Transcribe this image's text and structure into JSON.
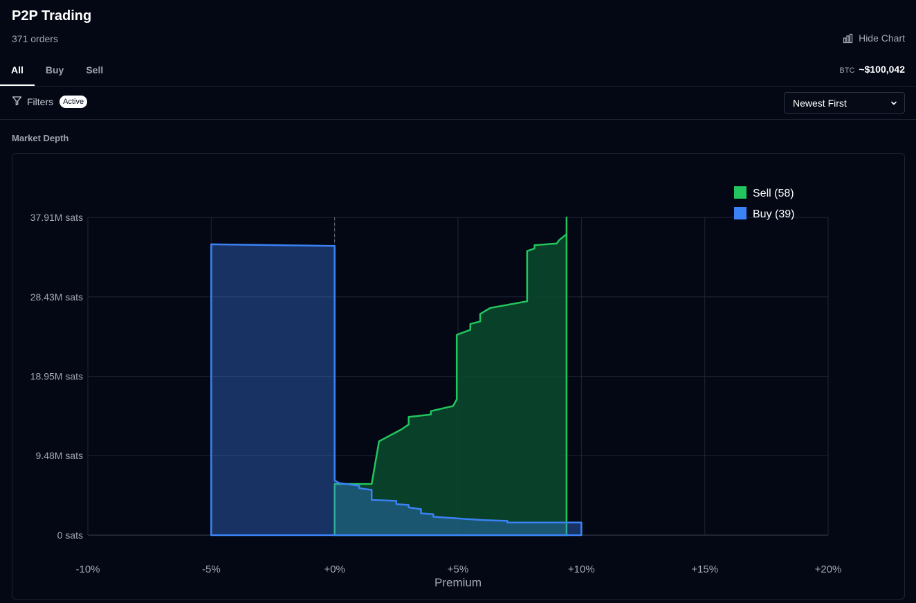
{
  "header": {
    "title": "P2P Trading",
    "order_count": "371 orders",
    "hide_chart_label": "Hide Chart",
    "btc_label": "BTC",
    "btc_price": "~$100,042"
  },
  "tabs": [
    {
      "label": "All",
      "active": true
    },
    {
      "label": "Buy",
      "active": false
    },
    {
      "label": "Sell",
      "active": false
    }
  ],
  "toolbar": {
    "filters_label": "Filters",
    "filters_badge": "Active",
    "sort_selected": "Newest First"
  },
  "section": {
    "market_depth_label": "Market Depth"
  },
  "icons": {
    "filter": "filter-icon",
    "chart": "bar-chart-icon",
    "dropdown": "chevron-down-icon"
  },
  "colors": {
    "sell": "#22c55e",
    "sell_fill": "#0b4a2d",
    "buy": "#3b82f6",
    "buy_fill": "#152e5c"
  },
  "chart_data": {
    "type": "area",
    "xlabel": "Premium",
    "ylabel": "",
    "x_unit": "%",
    "xlim": [
      -10,
      20
    ],
    "ylim": [
      0,
      37.91
    ],
    "x_ticks": [
      -10,
      -5,
      0,
      5,
      10,
      15,
      20
    ],
    "x_tick_labels": [
      "-10%",
      "-5%",
      "+0%",
      "+5%",
      "+10%",
      "+15%",
      "+20%"
    ],
    "y_ticks": [
      0,
      9.48,
      18.95,
      28.43,
      37.91
    ],
    "y_tick_labels": [
      "0 sats",
      "9.48M sats",
      "18.95M sats",
      "28.43M sats",
      "37.91M sats"
    ],
    "y_unit": "M sats",
    "grid": true,
    "legend_position": "top-right",
    "reference_line_x": 0,
    "series": [
      {
        "name": "Sell (58)",
        "color": "#22c55e",
        "points": [
          [
            0.0,
            0
          ],
          [
            0.0,
            6.1
          ],
          [
            1.5,
            6.1
          ],
          [
            1.8,
            11.2
          ],
          [
            2.7,
            12.6
          ],
          [
            3.0,
            13.2
          ],
          [
            3.0,
            14.1
          ],
          [
            3.9,
            14.4
          ],
          [
            3.9,
            14.8
          ],
          [
            4.8,
            15.4
          ],
          [
            4.95,
            16.2
          ],
          [
            4.95,
            23.9
          ],
          [
            5.5,
            24.5
          ],
          [
            5.5,
            25.2
          ],
          [
            5.9,
            25.5
          ],
          [
            5.9,
            26.4
          ],
          [
            6.3,
            27.1
          ],
          [
            7.8,
            27.9
          ],
          [
            7.8,
            33.9
          ],
          [
            8.1,
            34.2
          ],
          [
            8.1,
            34.6
          ],
          [
            9.0,
            34.8
          ],
          [
            9.1,
            35.2
          ],
          [
            9.4,
            35.9
          ],
          [
            9.4,
            37.91
          ],
          [
            9.4,
            0
          ]
        ]
      },
      {
        "name": "Buy (39)",
        "color": "#3b82f6",
        "points": [
          [
            -5.0,
            0
          ],
          [
            -5.0,
            34.7
          ],
          [
            0.0,
            34.5
          ],
          [
            0.0,
            6.5
          ],
          [
            0.2,
            6.2
          ],
          [
            1.0,
            5.9
          ],
          [
            1.0,
            5.6
          ],
          [
            1.5,
            5.4
          ],
          [
            1.5,
            4.2
          ],
          [
            2.5,
            4.1
          ],
          [
            2.5,
            3.7
          ],
          [
            3.0,
            3.6
          ],
          [
            3.0,
            3.3
          ],
          [
            3.5,
            3.1
          ],
          [
            3.5,
            2.6
          ],
          [
            4.0,
            2.5
          ],
          [
            4.0,
            2.2
          ],
          [
            6.0,
            1.8
          ],
          [
            7.0,
            1.7
          ],
          [
            7.0,
            1.5
          ],
          [
            10.0,
            1.5
          ],
          [
            10.0,
            0
          ]
        ]
      }
    ]
  }
}
